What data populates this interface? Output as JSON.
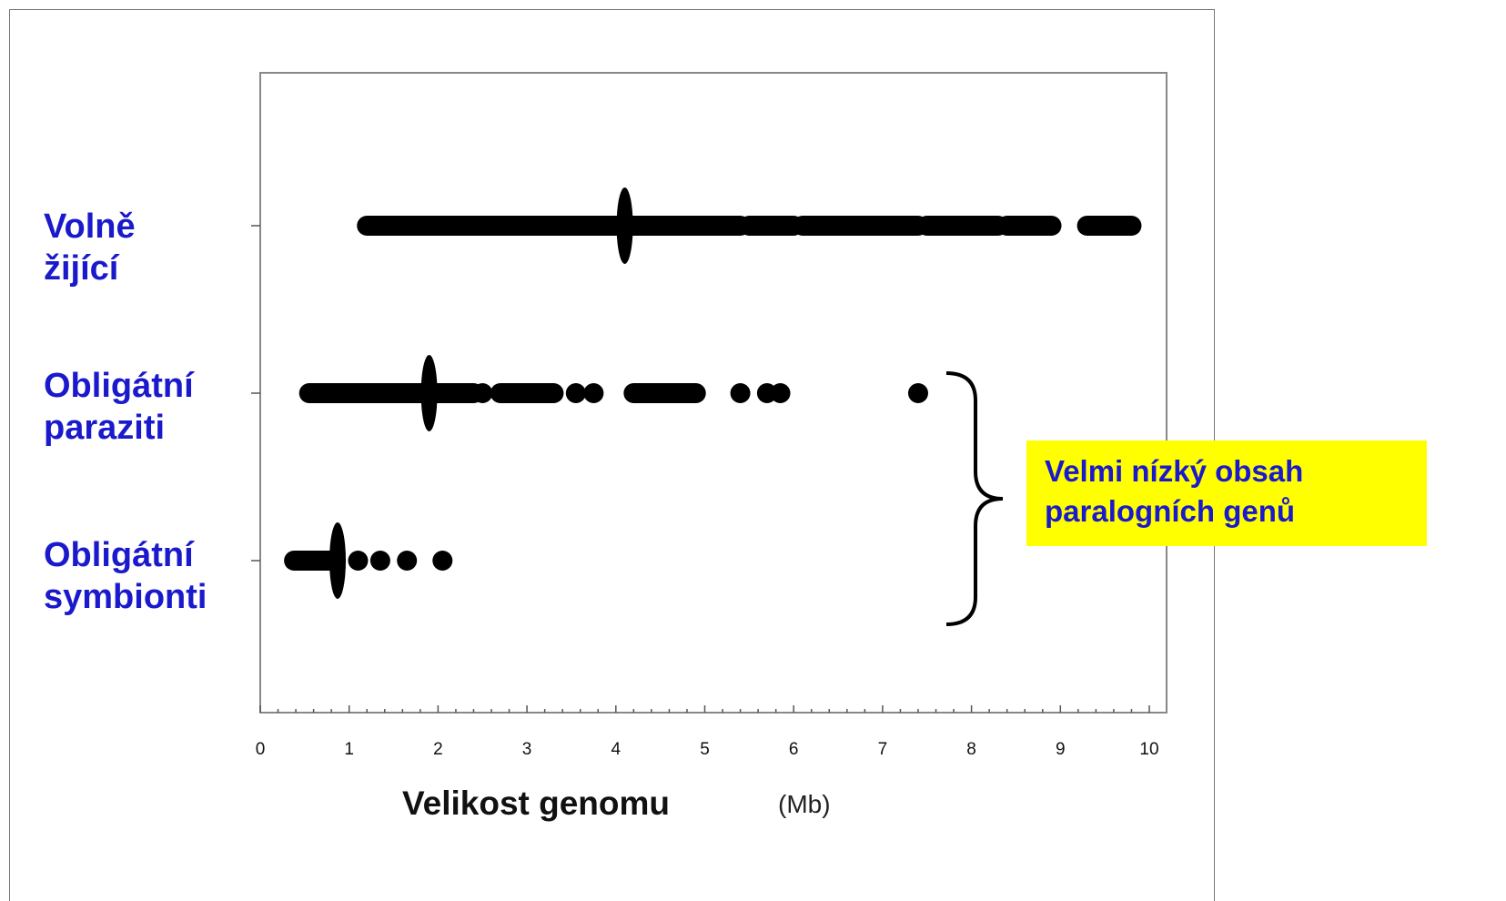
{
  "chart_data": {
    "type": "scatter",
    "xlabel": "Velikost genomu",
    "xunit": "(Mb)",
    "xlim": [
      0,
      10
    ],
    "x_ticks": [
      "0",
      "1",
      "2",
      "3",
      "4",
      "5",
      "6",
      "7",
      "8",
      "9",
      "10"
    ],
    "categories": [
      {
        "label_lines": [
          "Volně",
          "žijící"
        ],
        "median": 4.1,
        "x_dense_ranges": [
          [
            1.2,
            5.4
          ],
          [
            5.5,
            6.0
          ],
          [
            6.1,
            7.4
          ],
          [
            7.5,
            8.3
          ],
          [
            8.4,
            8.9
          ],
          [
            9.3,
            9.8
          ]
        ],
        "x_points": []
      },
      {
        "label_lines": [
          "Obligátní",
          "paraziti"
        ],
        "median": 1.9,
        "x_dense_ranges": [
          [
            0.55,
            2.4
          ],
          [
            2.7,
            3.3
          ],
          [
            4.2,
            4.9
          ]
        ],
        "x_points": [
          2.5,
          3.55,
          3.75,
          5.4,
          5.7,
          5.85,
          7.4
        ]
      },
      {
        "label_lines": [
          "Obligátní",
          "symbionti"
        ],
        "median": 0.87,
        "x_dense_ranges": [
          [
            0.38,
            0.85
          ]
        ],
        "x_points": [
          1.1,
          1.35,
          1.65,
          2.05
        ]
      }
    ],
    "grid": false
  },
  "note": {
    "lines": [
      "Velmi nízký obsah",
      "paralogních genů"
    ]
  },
  "colors": {
    "label": "#1a1acc",
    "highlight": "#ffff00",
    "marks": "#000000"
  }
}
